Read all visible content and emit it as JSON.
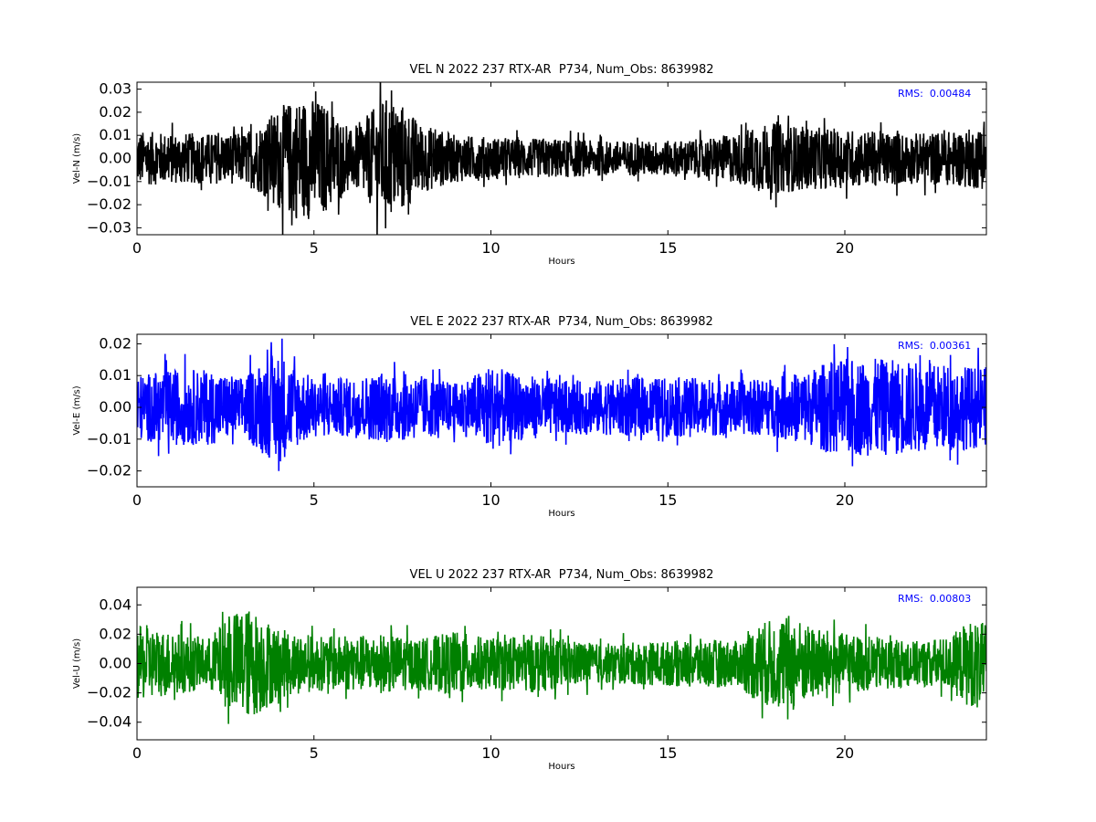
{
  "chart_data": [
    {
      "type": "line",
      "title": "VEL N 2022 237 RTX-AR  P734, Num_Obs: 8639982",
      "xlabel": "Hours",
      "ylabel": "Vel-N (m/s)",
      "xlim": [
        0,
        24
      ],
      "ylim": [
        -0.033,
        0.033
      ],
      "xticks": [
        "0",
        "5",
        "10",
        "15",
        "20"
      ],
      "xtick_values": [
        0,
        5,
        10,
        15,
        20
      ],
      "yticks": [
        "0.03",
        "0.02",
        "0.01",
        "0.00",
        "−0.01",
        "−0.02",
        "−0.03"
      ],
      "ytick_values": [
        0.03,
        0.02,
        0.01,
        0.0,
        -0.01,
        -0.02,
        -0.03
      ],
      "annotation": "RMS:  0.00484",
      "annotation_color": "#0000ff",
      "grid": false,
      "series": [
        {
          "color": "#000000",
          "envelope_x": [
            0,
            1,
            2,
            3,
            3.5,
            4,
            4.5,
            5,
            5.5,
            6,
            6.5,
            7,
            7.5,
            8,
            9,
            10,
            11,
            12,
            13,
            14,
            15,
            16,
            17,
            17.5,
            18,
            18.5,
            19,
            20,
            21,
            22,
            23,
            24
          ],
          "envelope_amplitude": [
            0.014,
            0.013,
            0.013,
            0.013,
            0.018,
            0.026,
            0.031,
            0.031,
            0.026,
            0.014,
            0.022,
            0.031,
            0.028,
            0.018,
            0.012,
            0.011,
            0.01,
            0.01,
            0.009,
            0.009,
            0.009,
            0.01,
            0.013,
            0.017,
            0.018,
            0.017,
            0.016,
            0.015,
            0.014,
            0.013,
            0.014,
            0.016
          ]
        }
      ]
    },
    {
      "type": "line",
      "title": "VEL E 2022 237 RTX-AR  P734, Num_Obs: 8639982",
      "xlabel": "Hours",
      "ylabel": "Vel-E (m/s)",
      "xlim": [
        0,
        24
      ],
      "ylim": [
        -0.025,
        0.023
      ],
      "xticks": [
        "0",
        "5",
        "10",
        "15",
        "20"
      ],
      "xtick_values": [
        0,
        5,
        10,
        15,
        20
      ],
      "yticks": [
        "0.02",
        "0.01",
        "0.00",
        "−0.01",
        "−0.02"
      ],
      "ytick_values": [
        0.02,
        0.01,
        0.0,
        -0.01,
        -0.02
      ],
      "annotation": "RMS:  0.00361",
      "annotation_color": "#0000ff",
      "grid": false,
      "series": [
        {
          "color": "#0000ff",
          "envelope_x": [
            0,
            1,
            2,
            3,
            3.5,
            4,
            4.5,
            5,
            6,
            7,
            8,
            9,
            9.5,
            10,
            10.5,
            11,
            12,
            13,
            14,
            15,
            16,
            17,
            18,
            19,
            19.5,
            20,
            21,
            22,
            23,
            24
          ],
          "envelope_amplitude": [
            0.012,
            0.014,
            0.014,
            0.011,
            0.017,
            0.021,
            0.015,
            0.011,
            0.011,
            0.013,
            0.012,
            0.009,
            0.012,
            0.016,
            0.013,
            0.012,
            0.01,
            0.01,
            0.011,
            0.011,
            0.011,
            0.01,
            0.011,
            0.014,
            0.017,
            0.018,
            0.018,
            0.017,
            0.016,
            0.015
          ]
        }
      ]
    },
    {
      "type": "line",
      "title": "VEL U 2022 237 RTX-AR  P734, Num_Obs: 8639982",
      "xlabel": "Hours",
      "ylabel": "Vel-U (m/s)",
      "xlim": [
        0,
        24
      ],
      "ylim": [
        -0.052,
        0.052
      ],
      "xticks": [
        "0",
        "5",
        "10",
        "15",
        "20"
      ],
      "xtick_values": [
        0,
        5,
        10,
        15,
        20
      ],
      "yticks": [
        "0.04",
        "0.02",
        "0.00",
        "−0.02",
        "−0.04"
      ],
      "ytick_values": [
        0.04,
        0.02,
        0.0,
        -0.02,
        -0.04
      ],
      "annotation": "RMS:  0.00803",
      "annotation_color": "#0000ff",
      "grid": false,
      "series": [
        {
          "color": "#008000",
          "envelope_x": [
            0,
            1,
            2,
            2.5,
            3,
            3.5,
            4,
            5,
            6,
            7,
            8,
            9,
            10,
            11,
            12,
            13,
            14,
            15,
            16,
            17,
            17.5,
            18,
            18.5,
            19,
            20,
            21,
            22,
            23,
            23.5,
            24
          ],
          "envelope_amplitude": [
            0.03,
            0.026,
            0.02,
            0.035,
            0.046,
            0.04,
            0.028,
            0.022,
            0.022,
            0.024,
            0.02,
            0.026,
            0.02,
            0.024,
            0.02,
            0.016,
            0.017,
            0.018,
            0.02,
            0.018,
            0.032,
            0.036,
            0.04,
            0.03,
            0.024,
            0.021,
            0.018,
            0.022,
            0.035,
            0.032
          ]
        }
      ]
    }
  ]
}
